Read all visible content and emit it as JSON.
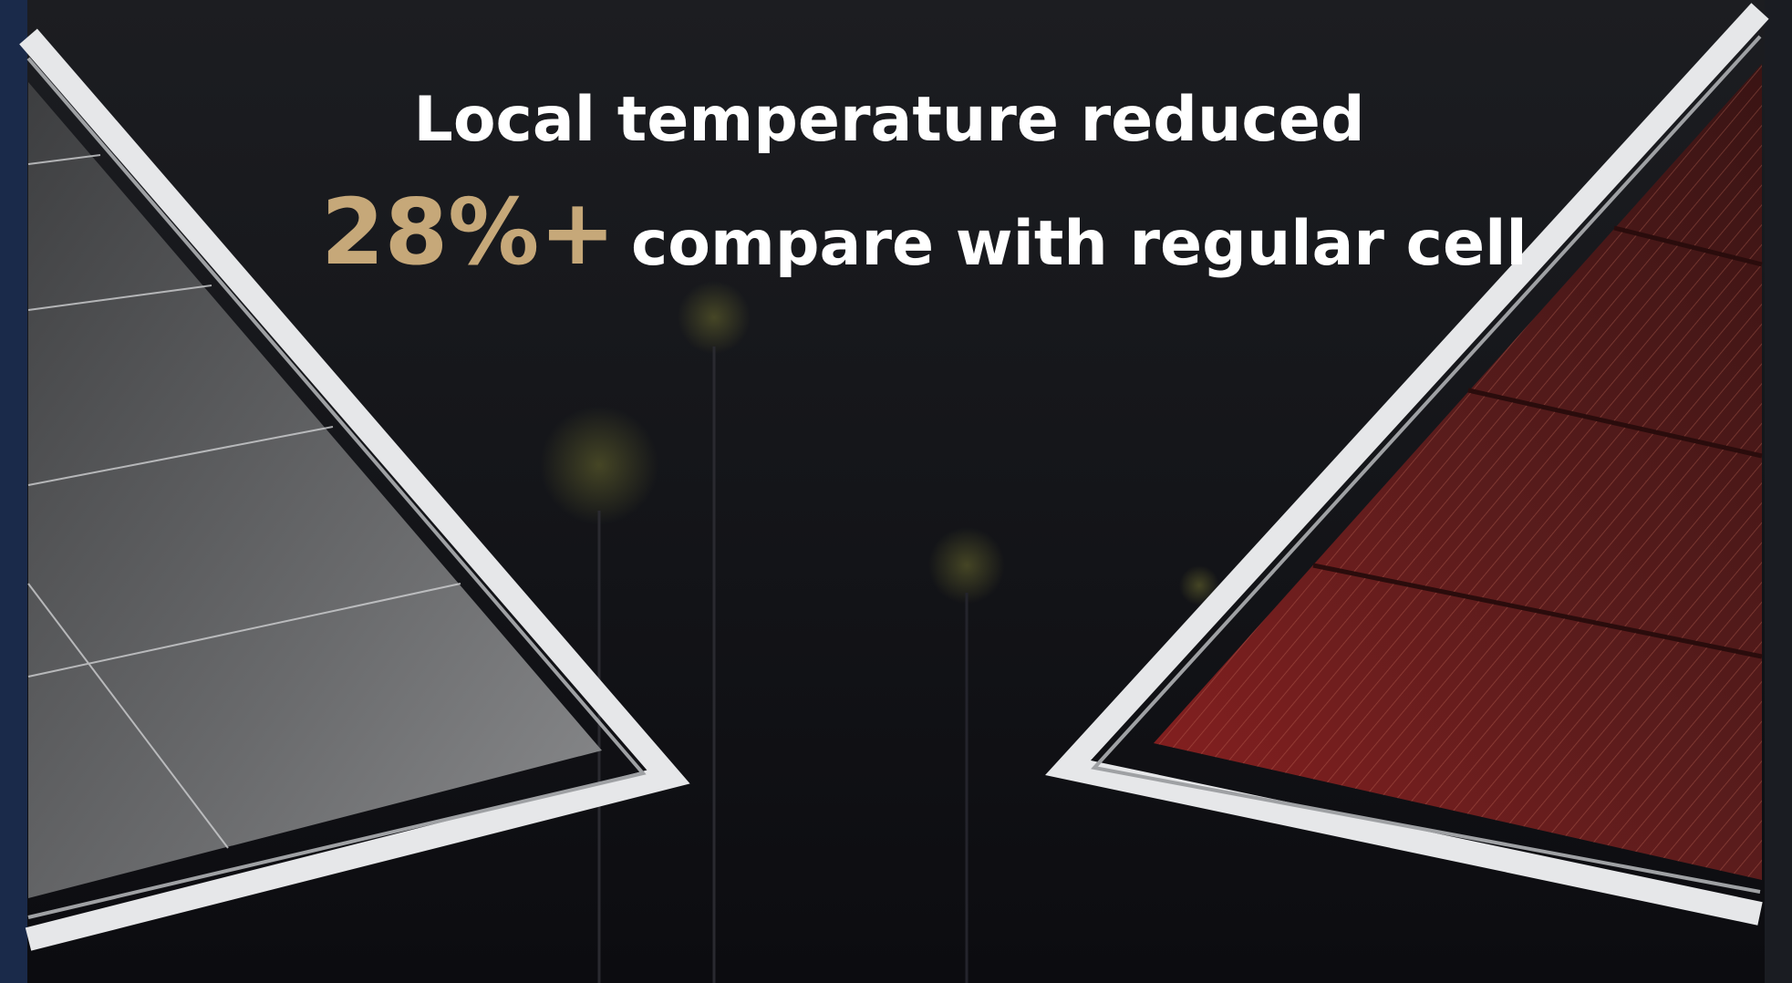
{
  "headline": "Local temperature reduced",
  "stat": "28%+",
  "subline": "compare with regular cell"
}
